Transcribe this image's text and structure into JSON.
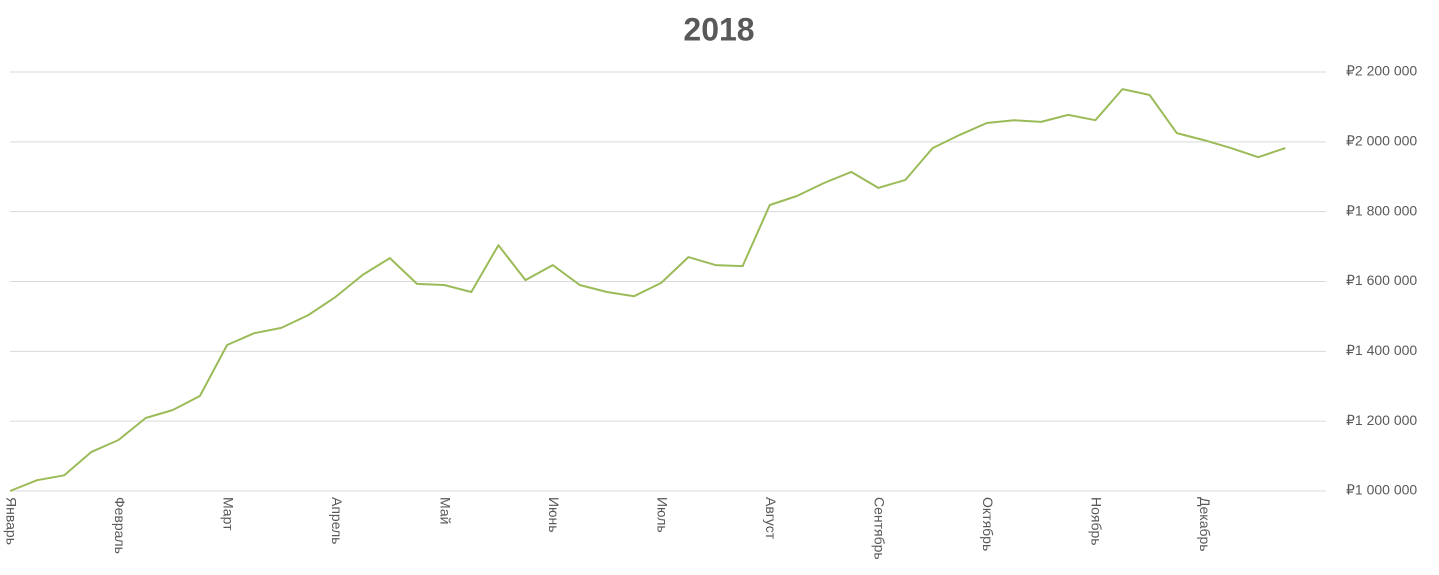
{
  "chart_data": {
    "type": "line",
    "title": "2018",
    "categories": [
      "Январь",
      null,
      null,
      null,
      "Февраль",
      null,
      null,
      null,
      "Март",
      null,
      null,
      null,
      "Апрель",
      null,
      null,
      null,
      "Май",
      null,
      null,
      null,
      "Июнь",
      null,
      null,
      null,
      "Июль",
      null,
      null,
      null,
      "Август",
      null,
      null,
      null,
      "Сентябрь",
      null,
      null,
      null,
      "Октябрь",
      null,
      null,
      null,
      "Ноябрь",
      null,
      null,
      null,
      "Декабрь",
      null,
      null,
      null
    ],
    "series": [
      {
        "color": "#9bbb59",
        "values": [
          1000000,
          1031000,
          1045000,
          1112000,
          1146000,
          1209000,
          1232000,
          1272000,
          1418000,
          1452000,
          1467000,
          1504000,
          1556000,
          1619000,
          1667000,
          1593000,
          1590000,
          1570000,
          1704000,
          1604000,
          1647000,
          1590000,
          1570000,
          1558000,
          1596000,
          1670000,
          1647000,
          1644000,
          1819000,
          1845000,
          1882000,
          1914000,
          1868000,
          1891000,
          1982000,
          2020000,
          2054000,
          2062000,
          2057000,
          2077000,
          2062000,
          2151000,
          2134000,
          2025000,
          2005000,
          1982000,
          1956000,
          1982000
        ]
      }
    ],
    "ylim": [
      1000000,
      2200000
    ],
    "yticks": [
      {
        "value": 1000000,
        "label": "₽1 000 000"
      },
      {
        "value": 1200000,
        "label": "₽1 200 000"
      },
      {
        "value": 1400000,
        "label": "₽1 400 000"
      },
      {
        "value": 1600000,
        "label": "₽1 600 000"
      },
      {
        "value": 1800000,
        "label": "₽1 800 000"
      },
      {
        "value": 2000000,
        "label": "₽2 000 000"
      },
      {
        "value": 2200000,
        "label": "₽2 200 000"
      }
    ],
    "grid": true
  }
}
